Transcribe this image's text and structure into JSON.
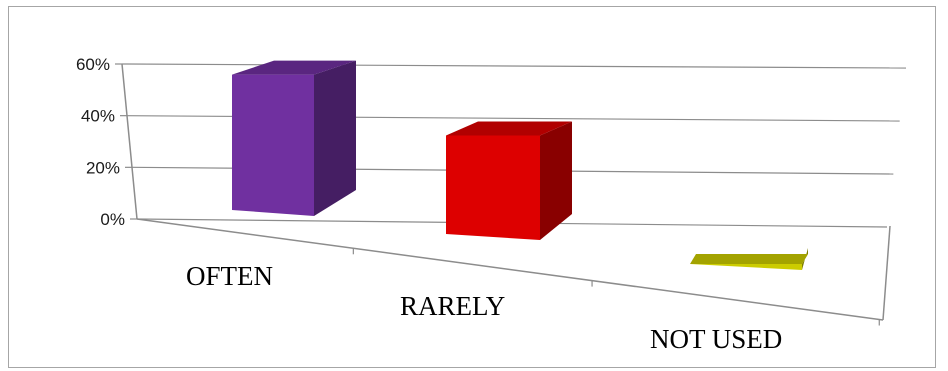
{
  "chart_data": {
    "type": "bar",
    "title": "",
    "xlabel": "",
    "ylabel": "",
    "categories": [
      "OFTEN",
      "RARELY",
      "NOT USED"
    ],
    "values": [
      57,
      38,
      2
    ],
    "ylim": [
      0,
      60
    ],
    "yticks": [
      "0%",
      "20%",
      "40%",
      "60%"
    ],
    "grid": true,
    "legend": "none",
    "style": "3d-column",
    "colors": [
      "#7030A0",
      "#DD0000",
      "#CCCC00"
    ]
  }
}
